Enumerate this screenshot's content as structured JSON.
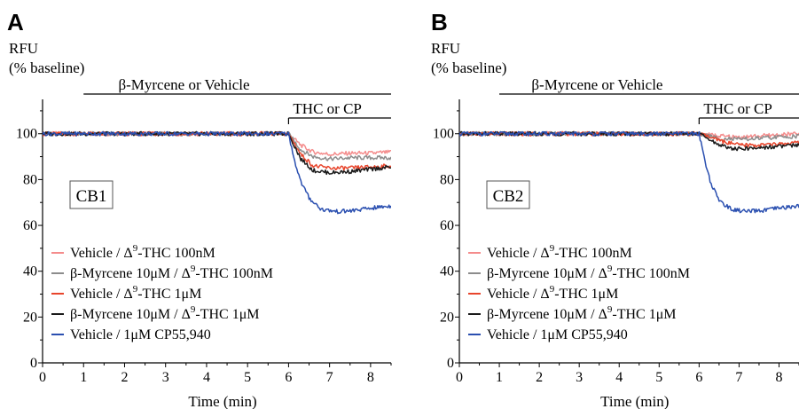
{
  "chart_data": [
    {
      "type": "line",
      "panel": "A",
      "ylabel": "RFU",
      "ylabel_sub": "(% baseline)",
      "xlabel": "Time (min)",
      "xlim": [
        0,
        8.5
      ],
      "ylim": [
        0,
        115
      ],
      "x_ticks": [
        0,
        1,
        2,
        3,
        4,
        5,
        6,
        7,
        8
      ],
      "y_ticks": [
        0,
        20,
        40,
        60,
        80,
        100
      ],
      "bar_top": {
        "label": "β-Myrcene or Vehicle",
        "start": 1,
        "end": 8.5
      },
      "bar_mid": {
        "label": "THC or CP",
        "start": 6,
        "end": 8.5
      },
      "box_label": "CB1",
      "legend_position": "bottom-left",
      "series": [
        {
          "name": "Vehicle / Δ9-THC 100nM",
          "name_main": "Vehicle / Δ",
          "name_sup": "9",
          "name_tail": "-THC 100nM",
          "color": "#f48c8c",
          "x": [
            0,
            6.0,
            6.3,
            6.6,
            7.0,
            7.5,
            8.0,
            8.5
          ],
          "y": [
            100,
            100,
            95,
            92,
            91,
            91.5,
            91.5,
            92
          ]
        },
        {
          "name": "β-Myrcene 10μM / Δ9-THC 100nM",
          "name_main": "β-Myrcene 10μM / Δ",
          "name_sup": "9",
          "name_tail": "-THC 100nM",
          "color": "#8c8c8c",
          "x": [
            0,
            6.0,
            6.3,
            6.6,
            7.0,
            7.5,
            8.0,
            8.5
          ],
          "y": [
            100,
            100,
            93,
            90,
            89,
            89.5,
            89.5,
            89.5
          ]
        },
        {
          "name": "Vehicle / Δ9-THC 1μM",
          "name_main": "Vehicle / Δ",
          "name_sup": "9",
          "name_tail": "-THC 1μM",
          "color": "#e8452c",
          "x": [
            0,
            6.0,
            6.3,
            6.6,
            7.0,
            7.5,
            8.0,
            8.5
          ],
          "y": [
            100,
            100,
            91,
            86,
            85,
            85,
            85.5,
            86
          ]
        },
        {
          "name": "β-Myrcene 10μM / Δ9-THC 1μM",
          "name_main": "β-Myrcene 10μM / Δ",
          "name_sup": "9",
          "name_tail": "-THC 1μM",
          "color": "#1a1a1a",
          "x": [
            0,
            6.0,
            6.3,
            6.6,
            7.0,
            7.5,
            8.0,
            8.5
          ],
          "y": [
            100,
            100,
            89,
            84,
            83,
            83.5,
            84.5,
            85.5
          ]
        },
        {
          "name": "Vehicle / 1μM CP55,940",
          "name_main": "Vehicle / 1μM CP55,940",
          "name_sup": "",
          "name_tail": "",
          "color": "#2a4fb0",
          "x": [
            0,
            6.0,
            6.15,
            6.3,
            6.5,
            6.8,
            7.2,
            7.6,
            8.0,
            8.5
          ],
          "y": [
            100,
            100,
            88,
            79,
            72,
            67,
            66,
            66.5,
            67.5,
            68.5
          ]
        }
      ]
    },
    {
      "type": "line",
      "panel": "B",
      "ylabel": "RFU",
      "ylabel_sub": "(% baseline)",
      "xlabel": "Time (min)",
      "xlim": [
        0,
        8.5
      ],
      "ylim": [
        0,
        115
      ],
      "x_ticks": [
        0,
        1,
        2,
        3,
        4,
        5,
        6,
        7,
        8
      ],
      "y_ticks": [
        0,
        20,
        40,
        60,
        80,
        100
      ],
      "bar_top": {
        "label": "β-Myrcene or Vehicle",
        "start": 1,
        "end": 8.5
      },
      "bar_mid": {
        "label": "THC or CP",
        "start": 6,
        "end": 8.5
      },
      "box_label": "CB2",
      "legend_position": "bottom-left",
      "series": [
        {
          "name": "Vehicle / Δ9-THC 100nM",
          "name_main": "Vehicle / Δ",
          "name_sup": "9",
          "name_tail": "-THC 100nM",
          "color": "#f48c8c",
          "x": [
            0,
            6.0,
            6.5,
            7.0,
            7.5,
            8.0,
            8.5
          ],
          "y": [
            100,
            100,
            99,
            98.5,
            99,
            99.5,
            100
          ]
        },
        {
          "name": "β-Myrcene 10μM / Δ9-THC 100nM",
          "name_main": "β-Myrcene 10μM / Δ",
          "name_sup": "9",
          "name_tail": "-THC 100nM",
          "color": "#8c8c8c",
          "x": [
            0,
            6.0,
            6.5,
            7.0,
            7.5,
            8.0,
            8.5
          ],
          "y": [
            100,
            100,
            98,
            97.5,
            98,
            98.5,
            99
          ]
        },
        {
          "name": "Vehicle / Δ9-THC 1μM",
          "name_main": "Vehicle / Δ",
          "name_sup": "9",
          "name_tail": "-THC 1μM",
          "color": "#e8452c",
          "x": [
            0,
            6.0,
            6.5,
            7.0,
            7.5,
            8.0,
            8.5
          ],
          "y": [
            100,
            100,
            97,
            95,
            95,
            95.5,
            96
          ]
        },
        {
          "name": "β-Myrcene 10μM / Δ9-THC 1μM",
          "name_main": "β-Myrcene 10μM / Δ",
          "name_sup": "9",
          "name_tail": "-THC 1μM",
          "color": "#1a1a1a",
          "x": [
            0,
            6.0,
            6.4,
            6.8,
            7.2,
            7.6,
            8.0,
            8.5
          ],
          "y": [
            100,
            100,
            96,
            93.5,
            93.5,
            94,
            94.5,
            95
          ]
        },
        {
          "name": "Vehicle / 1μM CP55,940",
          "name_main": "Vehicle / 1μM CP55,940",
          "name_sup": "",
          "name_tail": "",
          "color": "#2a4fb0",
          "x": [
            0,
            6.0,
            6.15,
            6.3,
            6.5,
            6.8,
            7.2,
            7.6,
            8.0,
            8.5
          ],
          "y": [
            100,
            100,
            88,
            78,
            71,
            67,
            66,
            66.5,
            67.5,
            68.5
          ]
        }
      ]
    }
  ]
}
